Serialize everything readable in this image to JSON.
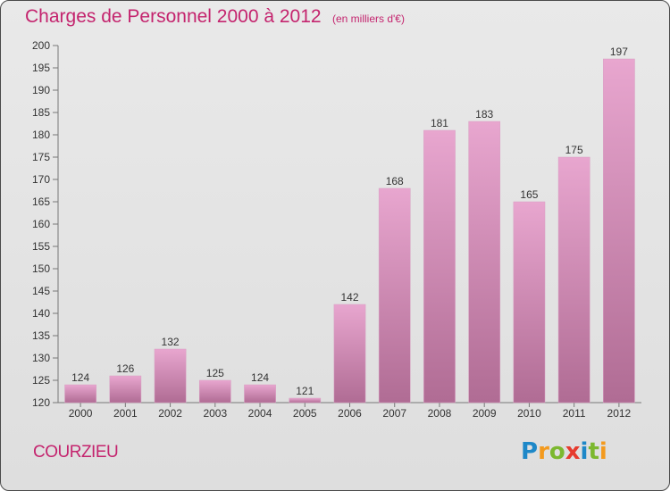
{
  "title": "Charges de Personnel 2000 à 2012",
  "subtitle": "(en milliers d'€)",
  "commune": "COURZIEU",
  "logo": {
    "letters": [
      "P",
      "r",
      "o",
      "x",
      "i",
      "t",
      "i"
    ],
    "colors": [
      "#1e88c8",
      "#f39a1e",
      "#7cb82f",
      "#e63b2e",
      "#1e88c8",
      "#7cb82f",
      "#f39a1e"
    ]
  },
  "colors": {
    "title": "#c4246e",
    "bar_top": "#e8a6cf",
    "bar_bottom": "#b06c94"
  },
  "chart_data": {
    "type": "bar",
    "title": "Charges de Personnel 2000 à 2012",
    "subtitle": "(en milliers d'€)",
    "categories": [
      "2000",
      "2001",
      "2002",
      "2003",
      "2004",
      "2005",
      "2006",
      "2007",
      "2008",
      "2009",
      "2010",
      "2011",
      "2012"
    ],
    "values": [
      124,
      126,
      132,
      125,
      124,
      121,
      142,
      168,
      181,
      183,
      165,
      175,
      197
    ],
    "value_labels": [
      "124",
      "126",
      "132",
      "125",
      "124",
      "121",
      "142",
      "168",
      "181",
      "183",
      "165",
      "175",
      "197"
    ],
    "ylim": [
      120,
      200
    ],
    "yticks": [
      120,
      125,
      130,
      135,
      140,
      145,
      150,
      155,
      160,
      165,
      170,
      175,
      180,
      185,
      190,
      195,
      200
    ],
    "grid": false,
    "xlabel": "",
    "ylabel": ""
  }
}
